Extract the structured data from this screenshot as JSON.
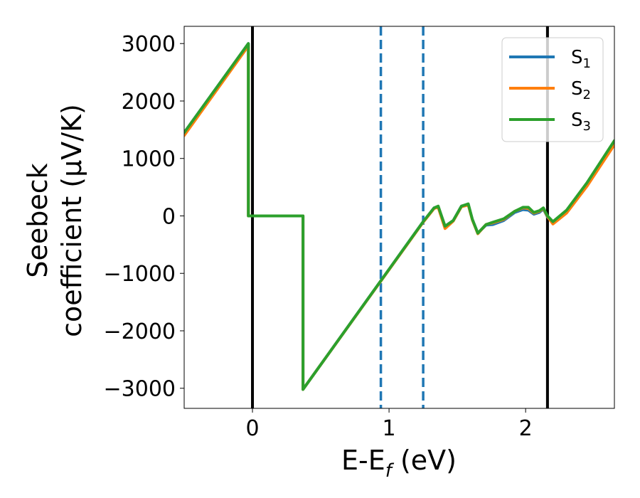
{
  "chart_data": {
    "type": "line",
    "xlabel": "E-E",
    "xlabel_sub": "f",
    "xlabel_unit": " (eV)",
    "ylabel_line1": "Seebeck",
    "ylabel_line2": "coefficient  (μV/K)",
    "xlim": [
      -0.5,
      2.65
    ],
    "ylim": [
      -3350,
      3300
    ],
    "xticks": [
      0,
      1,
      2
    ],
    "xtick_labels": [
      "0",
      "1",
      "2"
    ],
    "yticks": [
      3000,
      2000,
      1000,
      0,
      -1000,
      -2000,
      -3000
    ],
    "ytick_labels": [
      "3000",
      "2000",
      "1000",
      "0",
      "−1000",
      "−2000",
      "−3000"
    ],
    "grid": false,
    "legend_position": "top-right",
    "vertical_lines": [
      {
        "x": 0.0,
        "style": "solid",
        "color": "#000000"
      },
      {
        "x": 2.16,
        "style": "solid",
        "color": "#000000"
      },
      {
        "x": 0.94,
        "style": "dashed",
        "color": "#1f77b4"
      },
      {
        "x": 1.25,
        "style": "dashed",
        "color": "#1f77b4"
      }
    ],
    "series": [
      {
        "name": "S",
        "sub": "1",
        "color": "#1f77b4",
        "x": [
          -0.5,
          -0.03,
          -0.03,
          0.37,
          0.37,
          1.25,
          1.33,
          1.36,
          1.41,
          1.47,
          1.53,
          1.58,
          1.61,
          1.65,
          1.71,
          1.76,
          1.84,
          1.92,
          1.98,
          2.02,
          2.06,
          2.1,
          2.13,
          2.16,
          2.2,
          2.3,
          2.45,
          2.65
        ],
        "y": [
          1450,
          3000,
          0,
          0,
          -3020,
          -100,
          140,
          160,
          -180,
          -80,
          170,
          200,
          -60,
          -300,
          -160,
          -150,
          -80,
          60,
          110,
          100,
          30,
          60,
          120,
          -20,
          -120,
          80,
          560,
          1290
        ]
      },
      {
        "name": "S",
        "sub": "2",
        "color": "#ff7f0e",
        "x": [
          -0.5,
          -0.03,
          -0.03,
          0.37,
          0.37,
          1.25,
          1.33,
          1.36,
          1.41,
          1.47,
          1.53,
          1.58,
          1.61,
          1.65,
          1.71,
          1.76,
          1.84,
          1.92,
          1.98,
          2.02,
          2.06,
          2.1,
          2.13,
          2.16,
          2.2,
          2.3,
          2.45,
          2.65
        ],
        "y": [
          1400,
          2960,
          0,
          0,
          -3020,
          -110,
          130,
          150,
          -220,
          -90,
          160,
          190,
          -70,
          -310,
          -150,
          -120,
          -60,
          80,
          140,
          130,
          50,
          80,
          130,
          -10,
          -140,
          50,
          520,
          1240
        ]
      },
      {
        "name": "S",
        "sub": "3",
        "color": "#2ca02c",
        "x": [
          -0.5,
          -0.03,
          -0.03,
          0.37,
          0.37,
          1.25,
          1.33,
          1.36,
          1.41,
          1.47,
          1.53,
          1.58,
          1.61,
          1.65,
          1.71,
          1.76,
          1.84,
          1.92,
          1.98,
          2.02,
          2.06,
          2.1,
          2.13,
          2.16,
          2.2,
          2.3,
          2.45,
          2.65
        ],
        "y": [
          1450,
          3000,
          0,
          0,
          -3020,
          -100,
          140,
          170,
          -180,
          -80,
          170,
          210,
          -60,
          -300,
          -150,
          -110,
          -50,
          80,
          150,
          150,
          60,
          90,
          140,
          0,
          -100,
          100,
          580,
          1310
        ]
      }
    ]
  }
}
